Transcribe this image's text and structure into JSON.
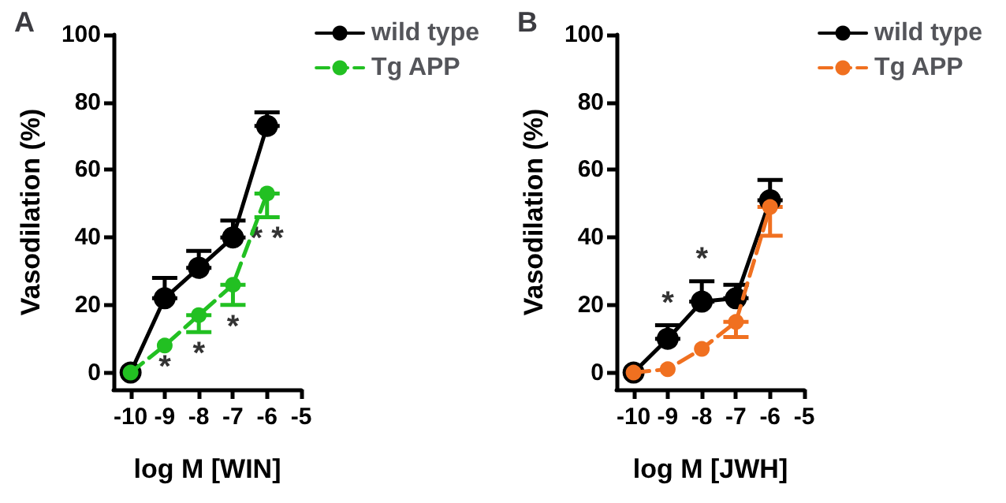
{
  "chart_data": [
    {
      "type": "line",
      "title": "A",
      "xlabel": "log M [WIN]",
      "ylabel": "Vasodilation (%)",
      "x": [
        -10,
        -9,
        -8,
        -7,
        -6
      ],
      "xlim": [
        -10.5,
        -5
      ],
      "xticks": [
        -10,
        -9,
        -8,
        -7,
        -6,
        -5
      ],
      "ylim": [
        -5,
        100
      ],
      "yticks": [
        0,
        20,
        40,
        60,
        80,
        100
      ],
      "grid": false,
      "legend": "top right",
      "marker": "circle",
      "series": [
        {
          "name": "wild type",
          "color": "#000000",
          "line_style": "solid",
          "values": [
            0,
            22,
            31,
            40,
            73
          ],
          "errors": [
            null,
            [
              22,
              28
            ],
            [
              31,
              36
            ],
            [
              40,
              45
            ],
            [
              73,
              77
            ]
          ]
        },
        {
          "name": "Tg APP",
          "color": "#22c022",
          "line_style": "dashed",
          "values": [
            0,
            8,
            17,
            26,
            53
          ],
          "errors": [
            null,
            null,
            [
              12,
              17
            ],
            [
              20,
              26
            ],
            [
              46,
              53
            ]
          ]
        }
      ],
      "annotations": [
        "*",
        "*",
        "*",
        "* *"
      ]
    },
    {
      "type": "line",
      "title": "B",
      "xlabel": "log M [JWH]",
      "ylabel": "Vasodilation (%)",
      "x": [
        -10,
        -9,
        -8,
        -7,
        -6
      ],
      "xlim": [
        -10.5,
        -5
      ],
      "xticks": [
        -10,
        -9,
        -8,
        -7,
        -6,
        -5
      ],
      "ylim": [
        -5,
        100
      ],
      "yticks": [
        0,
        20,
        40,
        60,
        80,
        100
      ],
      "grid": false,
      "legend": "top right",
      "marker": "circle",
      "series": [
        {
          "name": "wild type",
          "color": "#000000",
          "line_style": "solid",
          "values": [
            0,
            10,
            21,
            22,
            51
          ],
          "errors": [
            null,
            [
              10,
              14
            ],
            [
              21,
              27
            ],
            [
              22,
              26
            ],
            [
              51,
              57
            ]
          ]
        },
        {
          "name": "Tg APP",
          "color": "#f07020",
          "line_style": "dashed",
          "values": [
            0,
            1,
            7,
            15,
            49
          ],
          "errors": [
            null,
            null,
            null,
            [
              10.5,
              15
            ],
            [
              40.5,
              49
            ]
          ]
        }
      ],
      "annotations": [
        "*",
        "*"
      ]
    }
  ]
}
